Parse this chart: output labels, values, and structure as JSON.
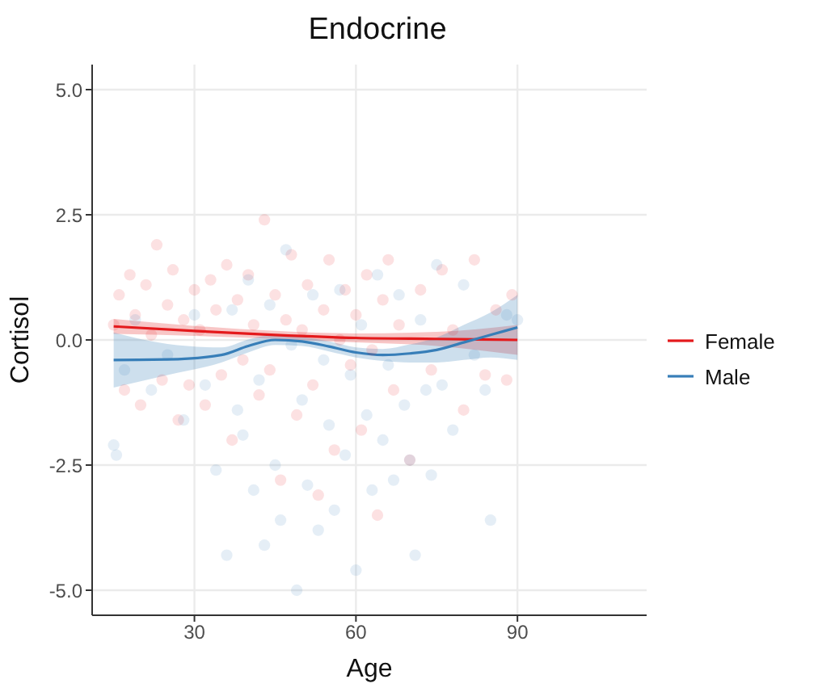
{
  "chart_data": {
    "type": "scatter",
    "title": "Endocrine",
    "xlabel": "Age",
    "ylabel": "Cortisol",
    "xlim": [
      11,
      114
    ],
    "xticks": [
      30,
      60,
      90
    ],
    "ylim": [
      -5.5,
      5.5
    ],
    "yticks": [
      {
        "value": -5,
        "label": "-5.0"
      },
      {
        "value": -2.5,
        "label": "-2.5"
      },
      {
        "value": 0,
        "label": "0.0"
      },
      {
        "value": 2.5,
        "label": "2.5"
      },
      {
        "value": 5,
        "label": "5.0"
      }
    ],
    "grid": true,
    "legend": "right",
    "series": [
      {
        "type": "scatter",
        "color": "#e41a1c",
        "marker": "circle",
        "x": [
          15,
          16,
          17,
          18,
          19,
          20,
          21,
          22,
          23,
          24,
          25,
          26,
          27,
          28,
          29,
          30,
          31,
          32,
          33,
          34,
          35,
          36,
          37,
          38,
          39,
          40,
          41,
          42,
          43,
          44,
          45,
          46,
          47,
          48,
          49,
          50,
          51,
          52,
          53,
          54,
          55,
          56,
          57,
          58,
          59,
          60,
          61,
          62,
          63,
          64,
          65,
          66,
          67,
          68,
          70,
          72,
          74,
          76,
          78,
          80,
          82,
          84,
          86,
          88,
          89
        ],
        "values": [
          0.3,
          0.9,
          -1.0,
          1.3,
          0.5,
          -1.3,
          1.1,
          0.1,
          1.9,
          -0.8,
          0.7,
          1.4,
          -1.6,
          0.4,
          -0.9,
          1.0,
          0.2,
          -1.3,
          1.2,
          0.6,
          -0.7,
          1.5,
          -2.0,
          0.8,
          -0.4,
          1.3,
          0.3,
          -1.1,
          2.4,
          -0.6,
          0.9,
          -2.8,
          0.4,
          1.7,
          -1.5,
          0.2,
          1.1,
          -0.9,
          -3.1,
          0.6,
          1.6,
          -2.2,
          0.0,
          1.0,
          -0.5,
          0.5,
          -1.8,
          1.3,
          -0.2,
          -3.5,
          0.8,
          1.6,
          -1.0,
          0.3,
          -2.4,
          1.0,
          -0.6,
          1.4,
          0.2,
          -1.4,
          1.6,
          -0.7,
          0.6,
          -0.8,
          0.9
        ]
      },
      {
        "type": "scatter",
        "color": "#377eb8",
        "marker": "circle",
        "x": [
          15,
          15.5,
          17,
          19,
          22,
          25,
          28,
          30,
          32,
          34,
          36,
          37,
          38,
          39,
          40,
          41,
          42,
          43,
          44,
          45,
          46,
          47,
          48,
          49,
          50,
          51,
          52,
          53,
          54,
          55,
          56,
          57,
          58,
          59,
          60,
          61,
          62,
          63,
          64,
          65,
          66,
          67,
          68,
          69,
          70,
          71,
          72,
          73,
          74,
          75,
          76,
          78,
          80,
          82,
          84,
          85,
          88,
          90
        ],
        "values": [
          -2.1,
          -2.3,
          -0.6,
          0.4,
          -1.0,
          -0.3,
          -1.6,
          0.5,
          -0.9,
          -2.6,
          -4.3,
          0.6,
          -1.4,
          -1.9,
          1.2,
          -3.0,
          -0.8,
          -4.1,
          0.7,
          -2.5,
          -3.6,
          1.8,
          -0.1,
          -5.0,
          -1.2,
          -2.9,
          0.9,
          -3.8,
          -0.4,
          -1.7,
          -3.4,
          1.0,
          -2.3,
          -0.7,
          -4.6,
          0.3,
          -1.5,
          -3.0,
          1.3,
          -2.0,
          -0.5,
          -2.8,
          0.9,
          -1.3,
          -2.4,
          -4.3,
          0.4,
          -1.0,
          -2.7,
          1.5,
          -0.9,
          -1.8,
          1.1,
          -0.3,
          -1.0,
          -3.6,
          0.5,
          0.4
        ]
      },
      {
        "type": "line",
        "name": "Female",
        "color": "#e41a1c",
        "x": [
          15,
          30,
          45,
          60,
          75,
          90
        ],
        "values": [
          0.27,
          0.18,
          0.1,
          0.04,
          0.02,
          0.0
        ],
        "lower": [
          0.12,
          0.08,
          0.02,
          -0.05,
          -0.12,
          -0.3
        ],
        "upper": [
          0.42,
          0.28,
          0.18,
          0.13,
          0.16,
          0.3
        ]
      },
      {
        "type": "line",
        "name": "Male",
        "color": "#377eb8",
        "x": [
          15,
          25,
          35,
          40,
          45,
          50,
          55,
          60,
          65,
          70,
          75,
          80,
          85,
          90
        ],
        "values": [
          -0.4,
          -0.39,
          -0.3,
          -0.12,
          0.0,
          -0.03,
          -0.13,
          -0.25,
          -0.3,
          -0.27,
          -0.2,
          -0.05,
          0.1,
          0.25
        ],
        "lower": [
          -0.95,
          -0.7,
          -0.45,
          -0.25,
          -0.1,
          -0.12,
          -0.23,
          -0.35,
          -0.42,
          -0.45,
          -0.45,
          -0.4,
          -0.35,
          -0.4
        ],
        "upper": [
          0.15,
          -0.08,
          -0.15,
          0.01,
          0.1,
          0.06,
          -0.03,
          -0.15,
          -0.18,
          -0.09,
          0.05,
          0.3,
          0.55,
          0.9
        ]
      }
    ]
  }
}
